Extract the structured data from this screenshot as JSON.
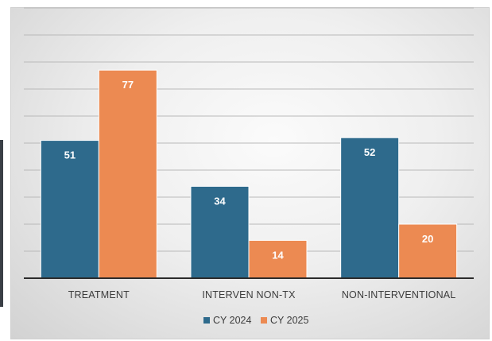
{
  "chart_data": {
    "type": "bar",
    "categories": [
      "TREATMENT",
      "INTERVEN NON-TX",
      "NON-INTERVENTIONAL"
    ],
    "series": [
      {
        "name": "CY 2024",
        "values": [
          51,
          34,
          52
        ],
        "color": "#2e6a8c"
      },
      {
        "name": "CY 2025",
        "values": [
          77,
          14,
          20
        ],
        "color": "#ec8a52"
      }
    ],
    "ylim": [
      0,
      100
    ],
    "grid": true,
    "legend": "bottom"
  }
}
